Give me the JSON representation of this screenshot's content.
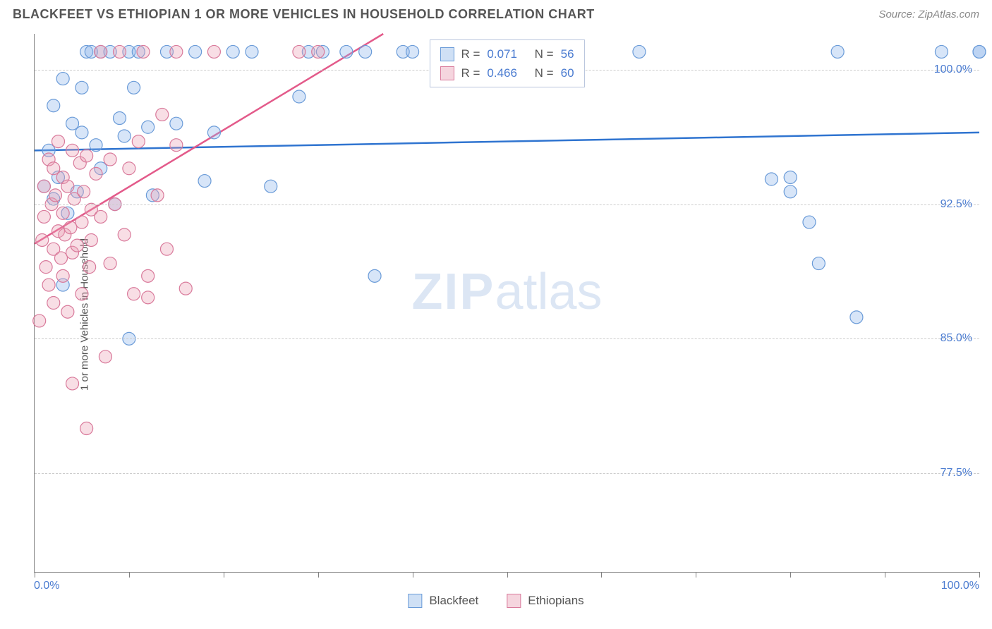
{
  "header": {
    "title": "BLACKFEET VS ETHIOPIAN 1 OR MORE VEHICLES IN HOUSEHOLD CORRELATION CHART",
    "source": "Source: ZipAtlas.com"
  },
  "chart": {
    "type": "scatter",
    "ylabel": "1 or more Vehicles in Household",
    "watermark_bold": "ZIP",
    "watermark_rest": "atlas",
    "background_color": "#ffffff",
    "grid_color": "#cccccc",
    "axis_color": "#808080",
    "tick_label_color": "#4a7bd0",
    "xlim": [
      0,
      100
    ],
    "ylim": [
      72,
      102
    ],
    "x_start_label": "0.0%",
    "x_end_label": "100.0%",
    "y_gridlines": [
      77.5,
      85.0,
      92.5,
      100.0
    ],
    "y_grid_labels": [
      "77.5%",
      "85.0%",
      "92.5%",
      "100.0%"
    ],
    "x_tick_positions": [
      0,
      10,
      20,
      30,
      40,
      50,
      60,
      70,
      80,
      90,
      100
    ],
    "series": [
      {
        "name": "Blackfeet",
        "marker_color_fill": "rgba(140,180,235,0.35)",
        "marker_color_stroke": "#6a9bd8",
        "marker_radius": 9,
        "legend_swatch_fill": "#cfe0f5",
        "legend_swatch_border": "#6a9bd8",
        "trend": {
          "stroke": "#2f74d0",
          "width": 2.5,
          "y_at_x0": 95.5,
          "y_at_x100": 96.5
        },
        "R": "0.071",
        "N": "56",
        "points": [
          [
            1,
            93.5
          ],
          [
            1.5,
            95.5
          ],
          [
            2,
            92.8
          ],
          [
            2,
            98.0
          ],
          [
            2.5,
            94.0
          ],
          [
            3,
            88.0
          ],
          [
            3,
            99.5
          ],
          [
            3.5,
            92.0
          ],
          [
            4,
            97.0
          ],
          [
            4.5,
            93.2
          ],
          [
            5,
            96.5
          ],
          [
            5,
            99.0
          ],
          [
            5.5,
            101.0
          ],
          [
            6,
            101.0
          ],
          [
            6.5,
            95.8
          ],
          [
            7,
            101.0
          ],
          [
            7,
            94.5
          ],
          [
            8,
            101.0
          ],
          [
            8.5,
            92.5
          ],
          [
            9,
            97.3
          ],
          [
            9.5,
            96.3
          ],
          [
            10,
            101.0
          ],
          [
            10,
            85.0
          ],
          [
            10.5,
            99.0
          ],
          [
            11,
            101.0
          ],
          [
            12,
            96.8
          ],
          [
            12.5,
            93.0
          ],
          [
            14,
            101.0
          ],
          [
            15,
            97.0
          ],
          [
            17,
            101.0
          ],
          [
            18,
            93.8
          ],
          [
            19,
            96.5
          ],
          [
            21,
            101.0
          ],
          [
            23,
            101.0
          ],
          [
            25,
            93.5
          ],
          [
            28,
            98.5
          ],
          [
            29,
            101.0
          ],
          [
            30.5,
            101.0
          ],
          [
            33,
            101.0
          ],
          [
            35,
            101.0
          ],
          [
            36,
            88.5
          ],
          [
            39,
            101.0
          ],
          [
            40,
            101.0
          ],
          [
            43,
            101.0
          ],
          [
            45,
            101.0
          ],
          [
            64,
            101.0
          ],
          [
            78,
            93.9
          ],
          [
            80,
            94.0
          ],
          [
            80,
            93.2
          ],
          [
            82,
            91.5
          ],
          [
            83,
            89.2
          ],
          [
            85,
            101.0
          ],
          [
            87,
            86.2
          ],
          [
            96,
            101.0
          ],
          [
            100,
            101.0
          ],
          [
            100,
            101.0
          ]
        ]
      },
      {
        "name": "Ethiopians",
        "marker_color_fill": "rgba(235,160,180,0.35)",
        "marker_color_stroke": "#d97a9b",
        "marker_radius": 9,
        "legend_swatch_fill": "#f5d5de",
        "legend_swatch_border": "#d97a9b",
        "trend": {
          "stroke": "#e35a8a",
          "width": 2.5,
          "y_at_x0": 90.3,
          "y_at_x100": 122.0
        },
        "R": "0.466",
        "N": "60",
        "points": [
          [
            0.5,
            86.0
          ],
          [
            0.8,
            90.5
          ],
          [
            1,
            91.8
          ],
          [
            1,
            93.5
          ],
          [
            1.2,
            89.0
          ],
          [
            1.5,
            95.0
          ],
          [
            1.5,
            88.0
          ],
          [
            1.8,
            92.5
          ],
          [
            2,
            94.5
          ],
          [
            2,
            90.0
          ],
          [
            2,
            87.0
          ],
          [
            2.2,
            93.0
          ],
          [
            2.5,
            96.0
          ],
          [
            2.5,
            91.0
          ],
          [
            2.8,
            89.5
          ],
          [
            3,
            92.0
          ],
          [
            3,
            94.0
          ],
          [
            3,
            88.5
          ],
          [
            3.2,
            90.8
          ],
          [
            3.5,
            93.5
          ],
          [
            3.5,
            86.5
          ],
          [
            3.8,
            91.2
          ],
          [
            4,
            95.5
          ],
          [
            4,
            89.8
          ],
          [
            4,
            82.5
          ],
          [
            4.2,
            92.8
          ],
          [
            4.5,
            90.2
          ],
          [
            4.8,
            94.8
          ],
          [
            5,
            91.5
          ],
          [
            5,
            87.5
          ],
          [
            5.2,
            93.2
          ],
          [
            5.5,
            95.2
          ],
          [
            5.5,
            80.0
          ],
          [
            5.8,
            89.0
          ],
          [
            6,
            92.2
          ],
          [
            6,
            90.5
          ],
          [
            6.5,
            94.2
          ],
          [
            7,
            91.8
          ],
          [
            7,
            101.0
          ],
          [
            7.5,
            84.0
          ],
          [
            8,
            95.0
          ],
          [
            8,
            89.2
          ],
          [
            8.5,
            92.5
          ],
          [
            9,
            101.0
          ],
          [
            9.5,
            90.8
          ],
          [
            10,
            94.5
          ],
          [
            10.5,
            87.5
          ],
          [
            11,
            96.0
          ],
          [
            11.5,
            101.0
          ],
          [
            12,
            88.5
          ],
          [
            12,
            87.3
          ],
          [
            13,
            93.0
          ],
          [
            13.5,
            97.5
          ],
          [
            14,
            90.0
          ],
          [
            15,
            101.0
          ],
          [
            15,
            95.8
          ],
          [
            16,
            87.8
          ],
          [
            19,
            101.0
          ],
          [
            28,
            101.0
          ],
          [
            30,
            101.0
          ]
        ]
      }
    ]
  },
  "legend_top": {
    "R_label": "R =",
    "N_label": "N ="
  },
  "legend_bottom": {
    "items": [
      "Blackfeet",
      "Ethiopians"
    ]
  }
}
